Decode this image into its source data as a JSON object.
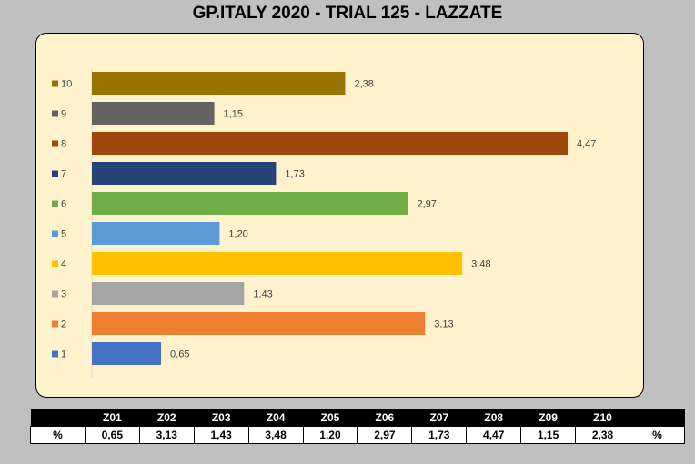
{
  "title": "GP.ITALY 2020 - TRIAL 125 - LAZZATE",
  "chart_data": {
    "type": "bar",
    "orientation": "horizontal",
    "categories": [
      "1",
      "2",
      "3",
      "4",
      "5",
      "6",
      "7",
      "8",
      "9",
      "10"
    ],
    "values": [
      0.65,
      3.13,
      1.43,
      3.48,
      1.2,
      2.97,
      1.73,
      4.47,
      1.15,
      2.38
    ],
    "labels": [
      "0,65",
      "3,13",
      "1,43",
      "3,48",
      "1,20",
      "2,97",
      "1,73",
      "4,47",
      "1,15",
      "2,38"
    ],
    "colors": [
      "#4472c4",
      "#ed7d31",
      "#a5a5a5",
      "#ffc000",
      "#5b9bd5",
      "#70ad47",
      "#264478",
      "#9e480e",
      "#636363",
      "#997300"
    ],
    "xlim": [
      0,
      4.47
    ],
    "grid": false,
    "legend": "left"
  },
  "table": {
    "header": [
      "",
      "Z01",
      "Z02",
      "Z03",
      "Z04",
      "Z05",
      "Z06",
      "Z07",
      "Z08",
      "Z09",
      "Z10",
      ""
    ],
    "row": [
      "%",
      "0,65",
      "3,13",
      "1,43",
      "3,48",
      "1,20",
      "2,97",
      "1,73",
      "4,47",
      "1,15",
      "2,38",
      "%"
    ]
  }
}
